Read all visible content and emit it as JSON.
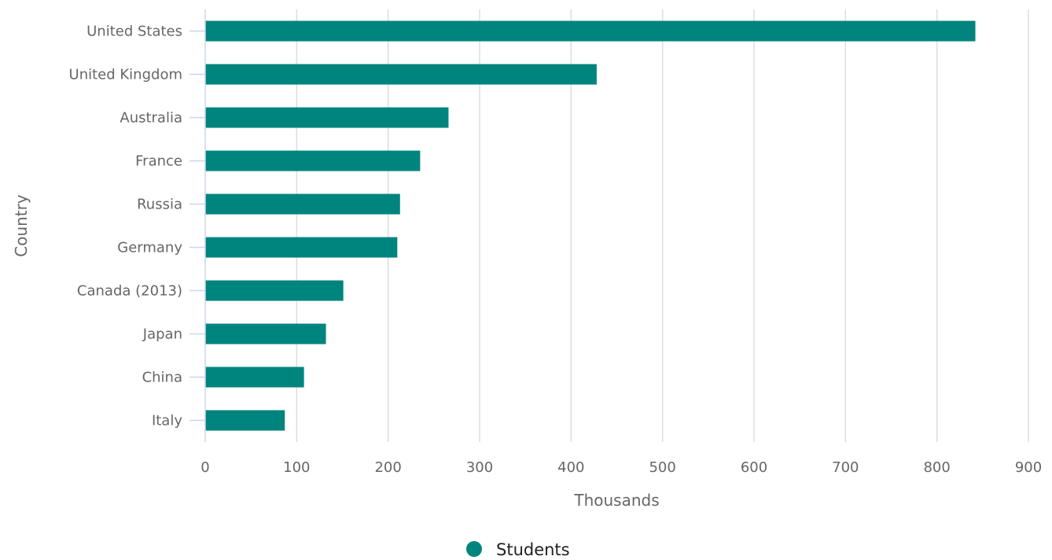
{
  "chart_data": {
    "type": "bar",
    "orientation": "horizontal",
    "categories": [
      "United States",
      "United Kingdom",
      "Australia",
      "France",
      "Russia",
      "Germany",
      "Canada (2013)",
      "Japan",
      "China",
      "Italy"
    ],
    "series": [
      {
        "name": "Students",
        "color": "#00847e",
        "values": [
          842,
          428,
          266,
          235,
          213,
          210,
          151,
          132,
          108,
          87
        ]
      }
    ],
    "xlabel": "Thousands",
    "ylabel": "Country",
    "xlim": [
      0,
      900
    ],
    "xticks": [
      0,
      100,
      200,
      300,
      400,
      500,
      600,
      700,
      800,
      900
    ],
    "grid": true,
    "legend": {
      "position": "bottom-center",
      "labels": [
        "Students"
      ]
    }
  }
}
